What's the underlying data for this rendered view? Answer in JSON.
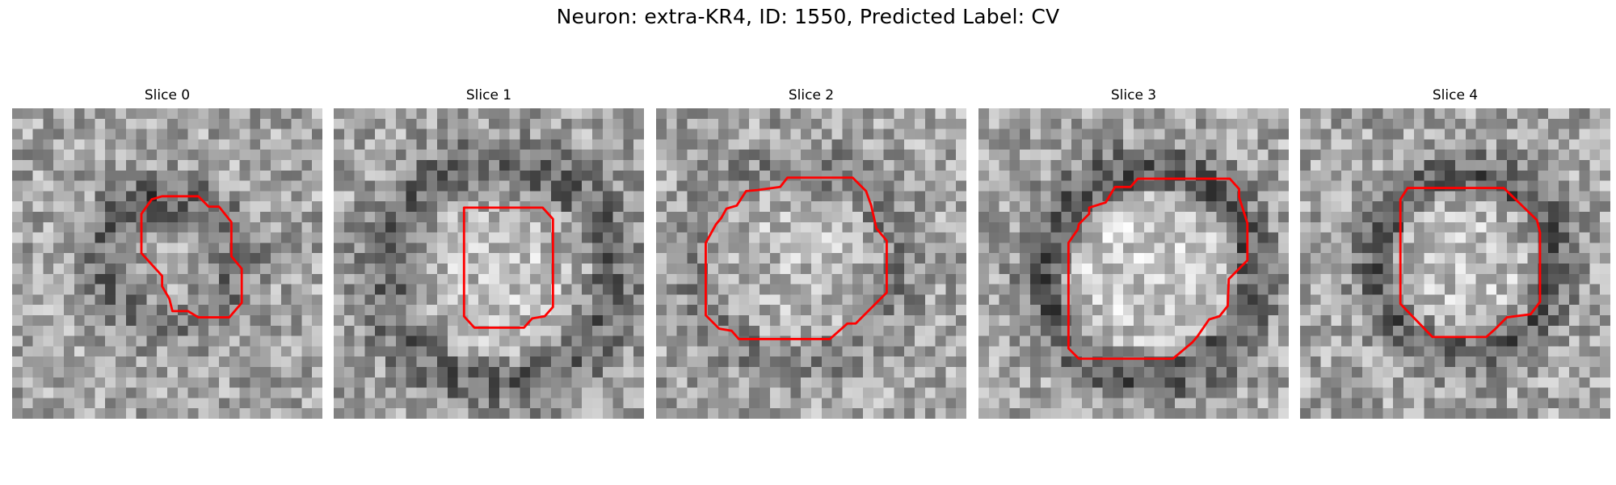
{
  "figure": {
    "title": "Neuron: extra-KR4, ID: 1550, Predicted Label: CV",
    "contour_color": "#ff0000"
  },
  "slices": [
    {
      "title": "Slice 0"
    },
    {
      "title": "Slice 1"
    },
    {
      "title": "Slice 2"
    },
    {
      "title": "Slice 3"
    },
    {
      "title": "Slice 4"
    }
  ]
}
